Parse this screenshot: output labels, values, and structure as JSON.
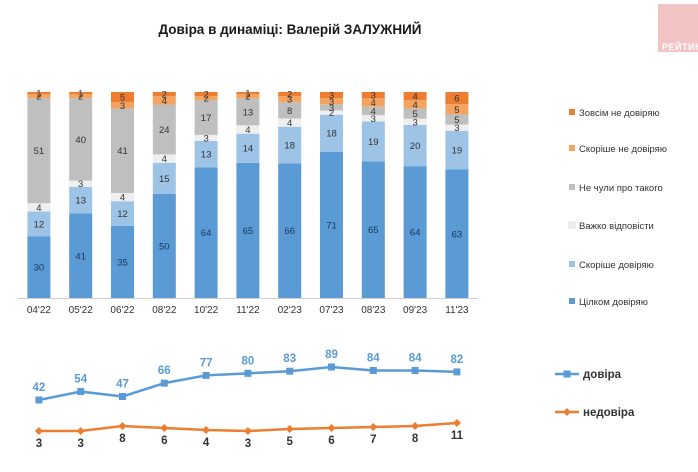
{
  "title": "Довіра в динаміці: Валерій ЗАЛУЖНИЙ",
  "logo": {
    "text": "РЕЙТИНГ"
  },
  "chart_data": [
    {
      "type": "bar",
      "stacked": true,
      "percent_scale": true,
      "categories": [
        "04'22",
        "05'22",
        "06'22",
        "08'22",
        "10'22",
        "11'22",
        "02'23",
        "07'23",
        "08'23",
        "09'23",
        "11'23"
      ],
      "ylim": [
        0,
        100
      ],
      "legend_position": "right",
      "series": [
        {
          "name": "Цілком довіряю",
          "color": "#5b9bd5",
          "values": [
            30,
            41,
            35,
            50,
            64,
            65,
            66,
            71,
            65,
            64,
            63
          ]
        },
        {
          "name": "Скоріше довіряю",
          "color": "#9dc3e6",
          "values": [
            12,
            13,
            12,
            15,
            13,
            14,
            18,
            18,
            19,
            20,
            19
          ]
        },
        {
          "name": "Важко відповісти",
          "color": "#efefef",
          "values": [
            4,
            3,
            4,
            4,
            3,
            4,
            4,
            2,
            3,
            3,
            3
          ]
        },
        {
          "name": "Не чули про такого",
          "color": "#bfbfbf",
          "values": [
            51,
            40,
            41,
            24,
            17,
            13,
            8,
            3,
            4,
            5,
            5
          ]
        },
        {
          "name": "Скоріше не довіряю",
          "color": "#f4a460",
          "values": [
            2,
            2,
            3,
            4,
            2,
            2,
            3,
            3,
            4,
            4,
            5
          ]
        },
        {
          "name": "Зовсім не довіряю",
          "color": "#ed7d31",
          "values": [
            1,
            1,
            5,
            2,
            2,
            1,
            2,
            3,
            3,
            4,
            6
          ]
        }
      ]
    },
    {
      "type": "line",
      "categories": [
        "04'22",
        "05'22",
        "06'22",
        "08'22",
        "10'22",
        "11'22",
        "02'23",
        "07'23",
        "08'23",
        "09'23",
        "11'23"
      ],
      "legend_position": "right",
      "series": [
        {
          "name": "довіра",
          "color": "#5b9bd5",
          "label_color": "#5b9bd5",
          "marker": "square",
          "values": [
            42,
            54,
            47,
            66,
            77,
            80,
            83,
            89,
            84,
            84,
            82
          ]
        },
        {
          "name": "недовіра",
          "color": "#ed7d31",
          "label_color": "#333333",
          "marker": "diamond",
          "values": [
            3,
            3,
            8,
            6,
            4,
            3,
            5,
            6,
            7,
            8,
            11
          ]
        }
      ]
    }
  ]
}
